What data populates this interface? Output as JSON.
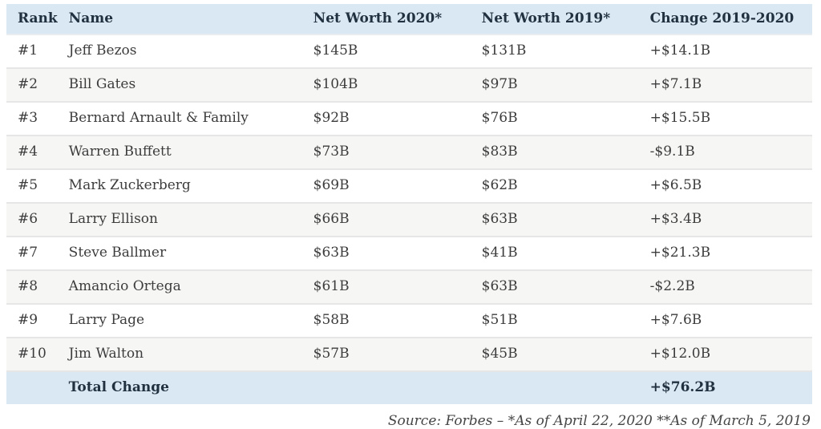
{
  "colors": {
    "header_bg": "#d9e8f3",
    "total_row_bg": "#d9e8f3",
    "stripe_bg": "#f6f7f5",
    "divider": "#e6e6e6",
    "header_text": "#22313f",
    "body_text": "#3c3c3c"
  },
  "table": {
    "columns": {
      "rank": "Rank",
      "name": "Name",
      "nw2020": "Net Worth 2020*",
      "nw2019": "Net Worth 2019*",
      "change": "Change 2019-2020"
    },
    "rows": [
      {
        "rank": "#1",
        "name": "Jeff Bezos",
        "nw2020": "$145B",
        "nw2019": "$131B",
        "change": "+$14.1B"
      },
      {
        "rank": "#2",
        "name": "Bill Gates",
        "nw2020": "$104B",
        "nw2019": "$97B",
        "change": "+$7.1B"
      },
      {
        "rank": "#3",
        "name": "Bernard Arnault & Family",
        "nw2020": "$92B",
        "nw2019": "$76B",
        "change": "+$15.5B"
      },
      {
        "rank": "#4",
        "name": "Warren Buffett",
        "nw2020": "$73B",
        "nw2019": "$83B",
        "change": "-$9.1B"
      },
      {
        "rank": "#5",
        "name": "Mark Zuckerberg",
        "nw2020": "$69B",
        "nw2019": "$62B",
        "change": "+$6.5B"
      },
      {
        "rank": "#6",
        "name": "Larry Ellison",
        "nw2020": "$66B",
        "nw2019": "$63B",
        "change": "+$3.4B"
      },
      {
        "rank": "#7",
        "name": "Steve Ballmer",
        "nw2020": "$63B",
        "nw2019": "$41B",
        "change": "+$21.3B"
      },
      {
        "rank": "#8",
        "name": "Amancio Ortega",
        "nw2020": "$61B",
        "nw2019": "$63B",
        "change": "-$2.2B"
      },
      {
        "rank": "#9",
        "name": "Larry Page",
        "nw2020": "$58B",
        "nw2019": "$51B",
        "change": "+$7.6B"
      },
      {
        "rank": "#10",
        "name": "Jim Walton",
        "nw2020": "$57B",
        "nw2019": "$45B",
        "change": "+$12.0B"
      }
    ],
    "total": {
      "label": "Total Change",
      "change": "+$76.2B"
    }
  },
  "footer": {
    "source_note": "Source: Forbes – *As of April 22, 2020 **As of March 5, 2019"
  }
}
